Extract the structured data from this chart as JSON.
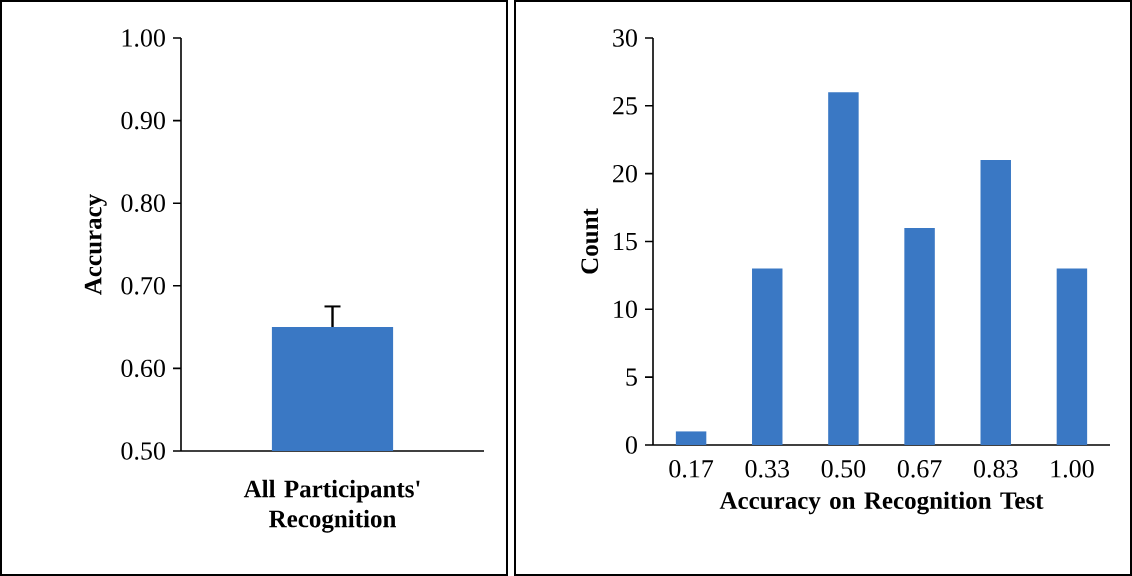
{
  "chart_data": [
    {
      "type": "bar",
      "categories": [
        null
      ],
      "values": [
        0.65
      ],
      "errors": [
        0.025
      ],
      "color": "#3a78c4",
      "ylabel": "Accuracy",
      "xlabel": "All Participants' Recognition",
      "ylim": [
        0.5,
        1.0
      ],
      "yticks": [
        {
          "value": 0.5,
          "label": "0.50"
        },
        {
          "value": 0.6,
          "label": "0.60"
        },
        {
          "value": 0.7,
          "label": "0.70"
        },
        {
          "value": 0.8,
          "label": "0.80"
        },
        {
          "value": 0.9,
          "label": "0.90"
        },
        {
          "value": 1.0,
          "label": "1.00"
        }
      ]
    },
    {
      "type": "bar",
      "categories": [
        "0.17",
        "0.33",
        "0.50",
        "0.67",
        "0.83",
        "1.00"
      ],
      "values": [
        1,
        13,
        26,
        16,
        21,
        13
      ],
      "color": "#3a78c4",
      "ylabel": "Count",
      "xlabel": "Accuracy on Recognition Test",
      "ylim": [
        0,
        30
      ],
      "yticks": [
        0,
        5,
        10,
        15,
        20,
        25,
        30
      ]
    }
  ]
}
